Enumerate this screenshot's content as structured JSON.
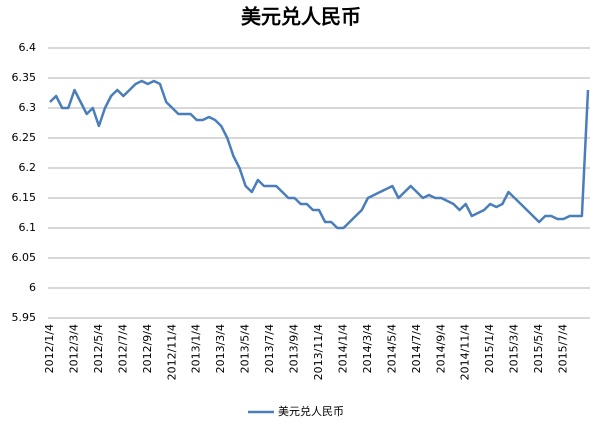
{
  "chart_data": {
    "type": "line",
    "title": "美元兑人民币",
    "categories": [
      "2012/1/4",
      null,
      null,
      null,
      "2012/3/4",
      null,
      null,
      null,
      "2012/5/4",
      null,
      null,
      null,
      "2012/7/4",
      null,
      null,
      null,
      "2012/9/4",
      null,
      null,
      null,
      "2012/11/4",
      null,
      null,
      null,
      "2013/1/4",
      null,
      null,
      null,
      "2013/3/4",
      null,
      null,
      null,
      "2013/5/4",
      null,
      null,
      null,
      "2013/7/4",
      null,
      null,
      null,
      "2013/9/4",
      null,
      null,
      null,
      "2013/11/4",
      null,
      null,
      null,
      "2014/1/4",
      null,
      null,
      null,
      "2014/3/4",
      null,
      null,
      null,
      "2014/5/4",
      null,
      null,
      null,
      "2014/7/4",
      null,
      null,
      null,
      "2014/9/4",
      null,
      null,
      null,
      "2014/11/4",
      null,
      null,
      null,
      "2015/1/4",
      null,
      null,
      null,
      "2015/3/4",
      null,
      null,
      null,
      "2015/5/4",
      null,
      null,
      null,
      "2015/7/4",
      null,
      null,
      null,
      null
    ],
    "series": [
      {
        "name": "美元兑人民币",
        "color": "#4a7ebb",
        "values": [
          6.31,
          6.32,
          6.3,
          6.3,
          6.33,
          6.31,
          6.29,
          6.3,
          6.27,
          6.3,
          6.32,
          6.33,
          6.32,
          6.33,
          6.34,
          6.345,
          6.34,
          6.345,
          6.34,
          6.31,
          6.3,
          6.29,
          6.29,
          6.29,
          6.28,
          6.28,
          6.285,
          6.28,
          6.27,
          6.25,
          6.22,
          6.2,
          6.17,
          6.16,
          6.18,
          6.17,
          6.17,
          6.17,
          6.16,
          6.15,
          6.15,
          6.14,
          6.14,
          6.13,
          6.13,
          6.11,
          6.11,
          6.1,
          6.1,
          6.11,
          6.12,
          6.13,
          6.15,
          6.155,
          6.16,
          6.165,
          6.17,
          6.15,
          6.16,
          6.17,
          6.16,
          6.15,
          6.155,
          6.15,
          6.15,
          6.145,
          6.14,
          6.13,
          6.14,
          6.12,
          6.125,
          6.13,
          6.14,
          6.135,
          6.14,
          6.16,
          6.15,
          6.14,
          6.13,
          6.12,
          6.11,
          6.12,
          6.12,
          6.115,
          6.115,
          6.12,
          6.12,
          6.12,
          6.33
        ]
      }
    ],
    "ylim": [
      5.95,
      6.4
    ],
    "yticks": [
      5.95,
      6,
      6.05,
      6.1,
      6.15,
      6.2,
      6.25,
      6.3,
      6.35,
      6.4
    ],
    "grid": true,
    "legend": "bottom"
  }
}
